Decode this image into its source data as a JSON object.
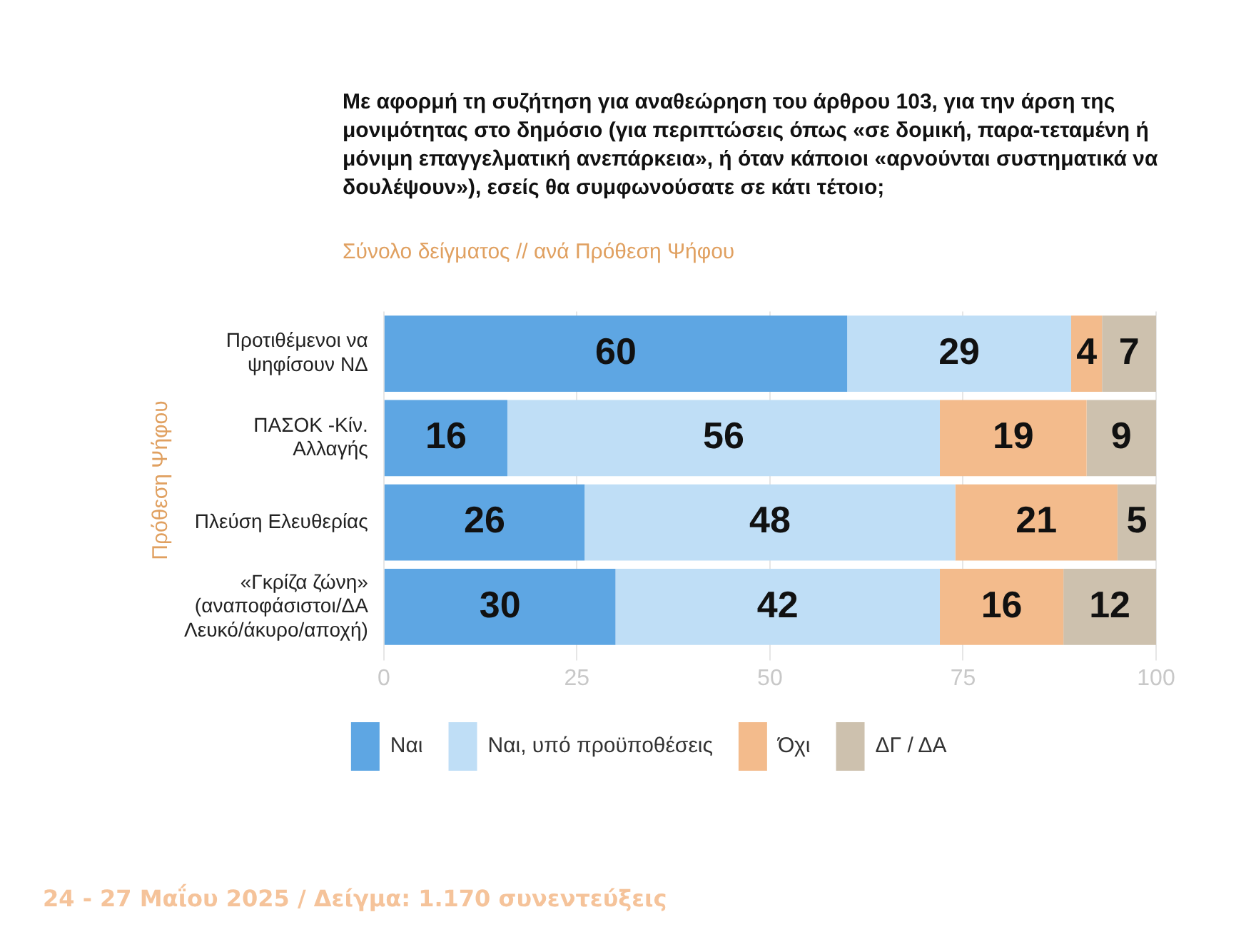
{
  "chart_data": {
    "type": "bar",
    "orientation": "horizontal",
    "stacked": true,
    "title": "Με αφορμή τη συζήτηση για αναθεώρηση του άρθρου 103, για την άρση της μονιμότητας στο δημόσιο (για περιπτώσεις όπως «σε δομική, παρα-τεταμένη ή μόνιμη επαγγελματική ανεπάρκεια», ή όταν κάποιοι «αρνούνται συστηματικά να δουλέψουν»), εσείς θα συμφωνούσατε σε κάτι τέτοιο;",
    "subtitle": "Σύνολο δείγματος // ανά Πρόθεση Ψήφου",
    "ylabel": "Πρόθεση Ψήφου",
    "categories": [
      "Προτιθέμενοι να ψηφίσουν ΝΔ",
      "ΠΑΣΟΚ -Κίν. Αλλαγής",
      "Πλεύση Ελευθερίας",
      "«Γκρίζα ζώνη» (αναποφάσιστοι/ΔΑ Λευκό/άκυρο/αποχή)"
    ],
    "series": [
      {
        "name": "Ναι",
        "color": "#5ea6e3",
        "values": [
          60,
          16,
          26,
          30
        ]
      },
      {
        "name": "Ναι, υπό προϋποθέσεις",
        "color": "#bfdef6",
        "values": [
          29,
          56,
          48,
          42
        ]
      },
      {
        "name": "Όχι",
        "color": "#f3bb8c",
        "values": [
          4,
          19,
          21,
          16
        ]
      },
      {
        "name": "ΔΓ / ΔΑ",
        "color": "#cdc1ae",
        "values": [
          7,
          9,
          5,
          12
        ]
      }
    ],
    "xlim": [
      0,
      100
    ],
    "xticks": [
      0,
      25,
      50,
      75,
      100
    ],
    "grid": "x",
    "legend": "bottom",
    "data_labels": true,
    "annotations": [
      "24 - 27 Μαΐου 2025  /  Δείγμα:  1.170 συνεντεύξεις"
    ]
  }
}
